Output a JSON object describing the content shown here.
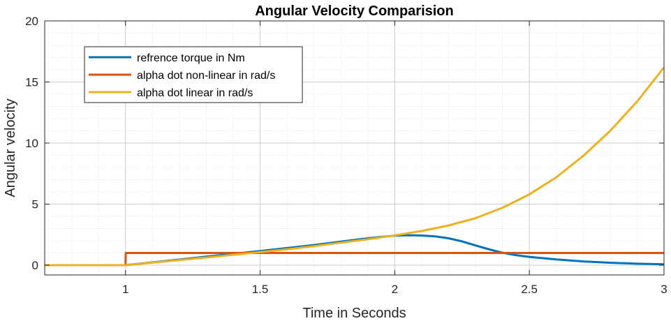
{
  "chart_data": {
    "type": "line",
    "title": "Angular Velocity Comparision",
    "xlabel": "Time in Seconds",
    "ylabel": "Angular velocity",
    "xlim": [
      0.7,
      3
    ],
    "ylim": [
      -0.8,
      20
    ],
    "xticks": [
      1,
      1.5,
      2,
      2.5,
      3
    ],
    "xtick_labels": [
      "1",
      "1.5",
      "2",
      "2.5",
      "3"
    ],
    "yticks": [
      0,
      5,
      10,
      15,
      20
    ],
    "ytick_labels": [
      "0",
      "5",
      "10",
      "15",
      "20"
    ],
    "grid": true,
    "minor_grid": true,
    "legend_position": "top-left",
    "series": [
      {
        "name": "refrence torque in Nm",
        "color": "#0072BD",
        "x": [
          0.7,
          1.0,
          1.1,
          1.2,
          1.3,
          1.4,
          1.5,
          1.6,
          1.7,
          1.8,
          1.9,
          2.0,
          2.05,
          2.1,
          2.15,
          2.2,
          2.25,
          2.3,
          2.35,
          2.4,
          2.45,
          2.5,
          2.6,
          2.7,
          2.8,
          2.9,
          3.0
        ],
        "y": [
          0,
          0,
          0.23,
          0.46,
          0.7,
          0.93,
          1.16,
          1.4,
          1.65,
          1.93,
          2.2,
          2.42,
          2.45,
          2.43,
          2.36,
          2.2,
          1.95,
          1.62,
          1.3,
          1.02,
          0.82,
          0.68,
          0.47,
          0.31,
          0.2,
          0.12,
          0.07
        ]
      },
      {
        "name": "alpha dot non-linear in rad/s",
        "color": "#D95319",
        "x": [
          0.7,
          0.999,
          1.0,
          1.001,
          3.0
        ],
        "y": [
          0,
          0,
          0,
          1.0,
          1.0
        ]
      },
      {
        "name": "alpha dot linear in rad/s",
        "color": "#EDB120",
        "x": [
          0.7,
          1.0,
          1.1,
          1.2,
          1.3,
          1.4,
          1.5,
          1.6,
          1.7,
          1.8,
          1.9,
          2.0,
          2.1,
          2.2,
          2.3,
          2.4,
          2.5,
          2.6,
          2.7,
          2.8,
          2.9,
          3.0
        ],
        "y": [
          0,
          0,
          0.21,
          0.42,
          0.63,
          0.85,
          1.07,
          1.3,
          1.56,
          1.84,
          2.12,
          2.44,
          2.8,
          3.25,
          3.85,
          4.7,
          5.8,
          7.2,
          8.95,
          11.0,
          13.4,
          16.2
        ]
      }
    ]
  }
}
